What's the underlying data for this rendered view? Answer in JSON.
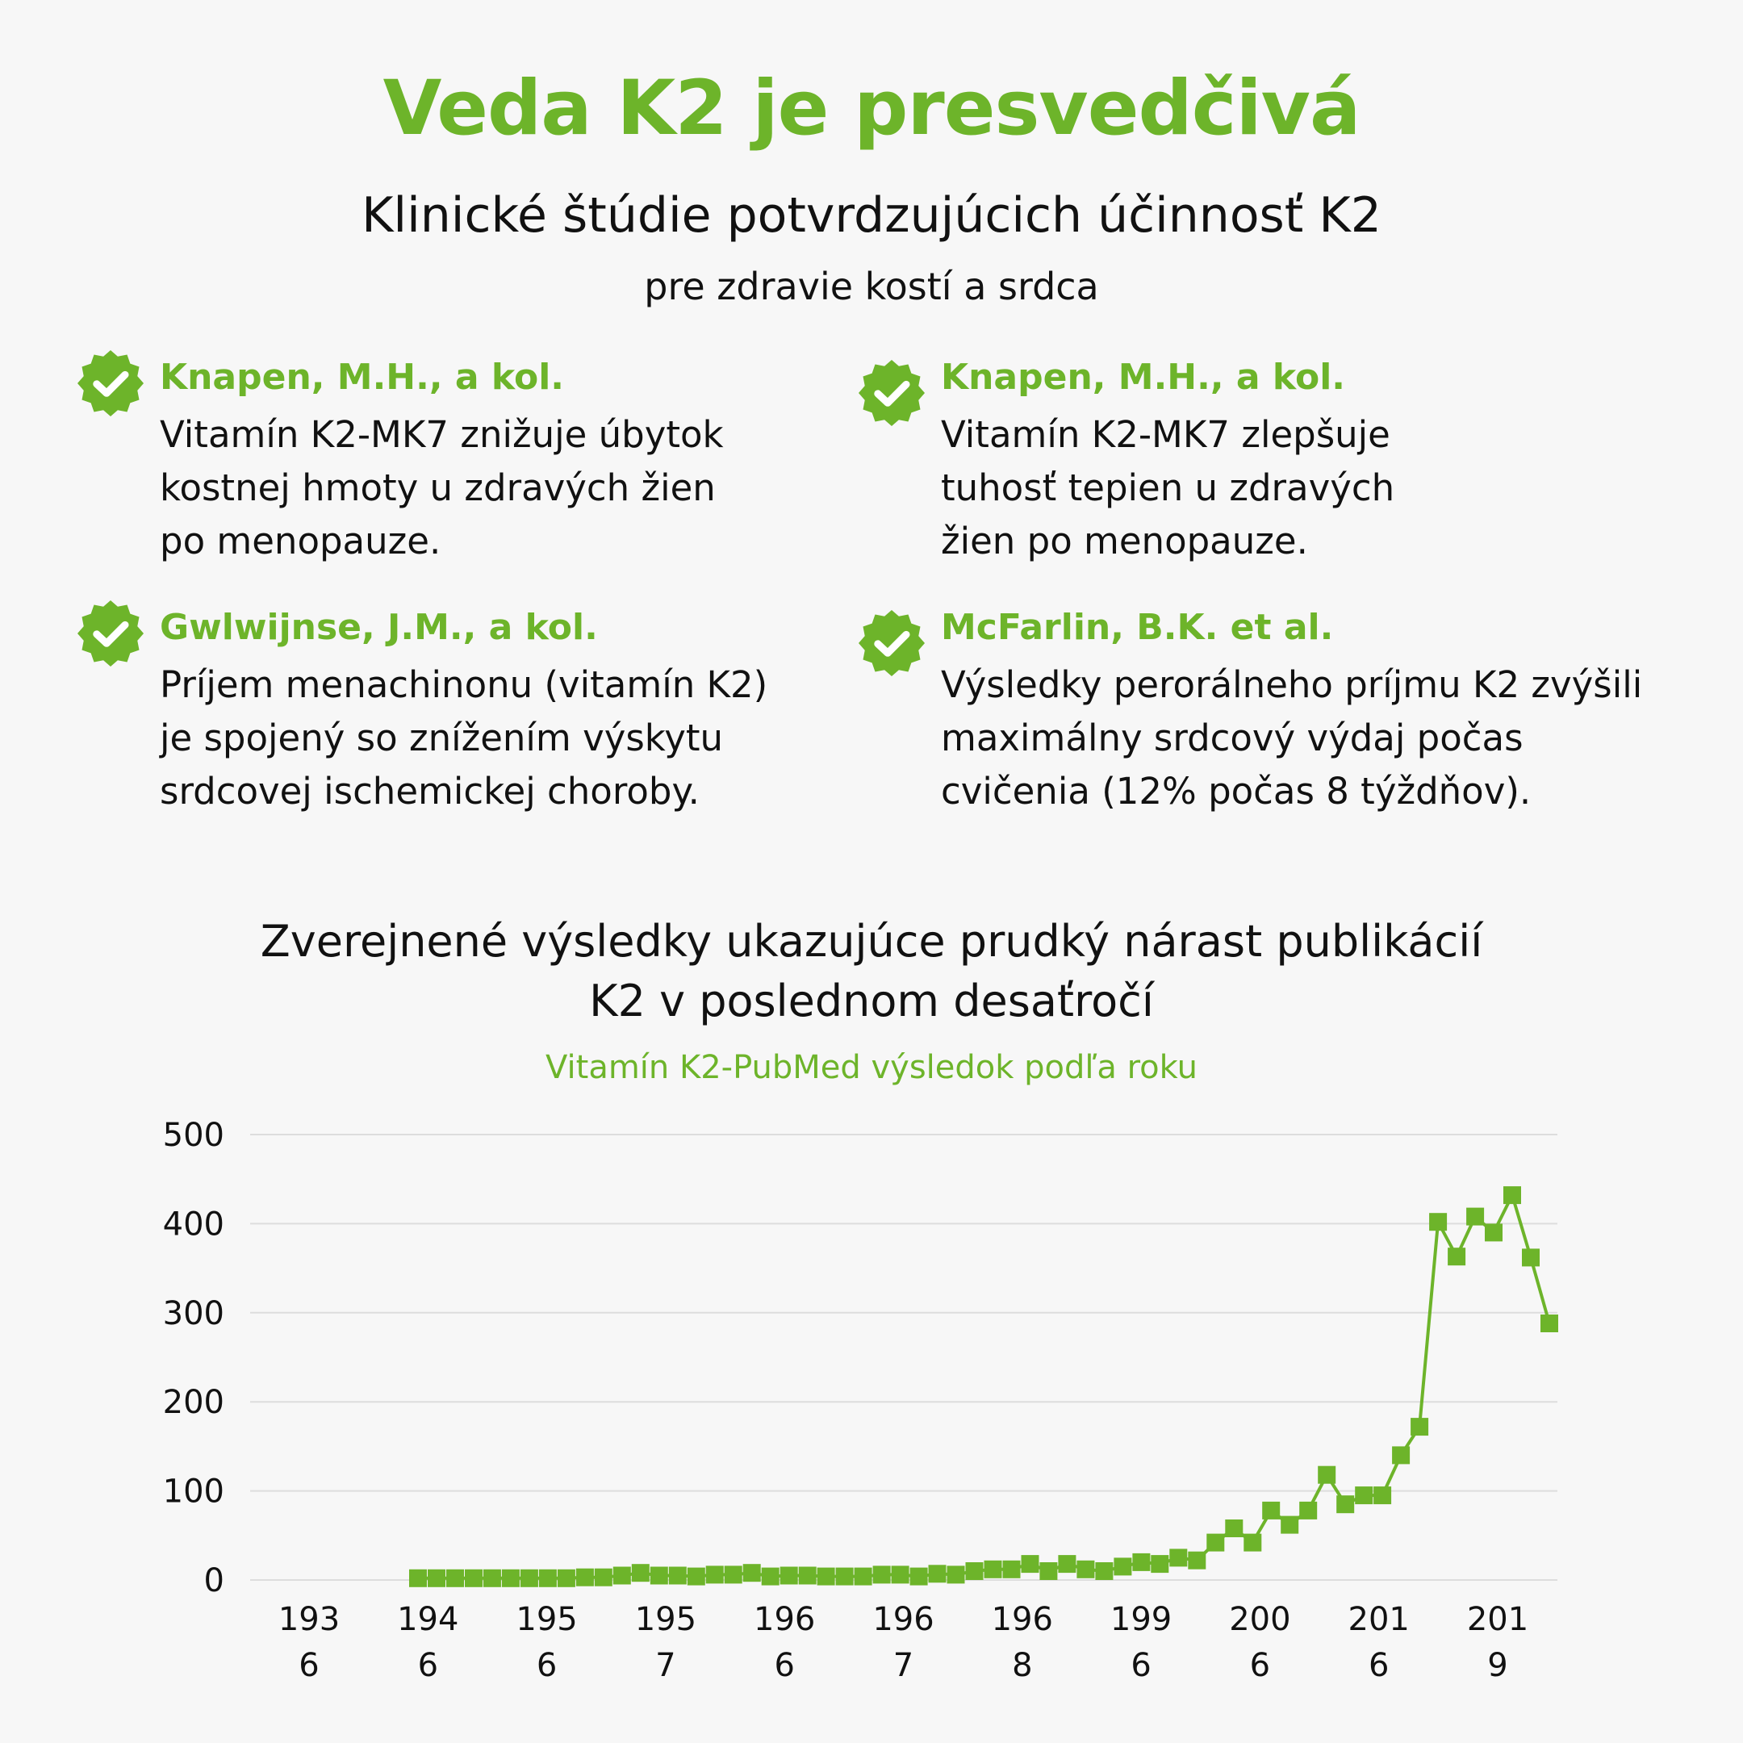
{
  "header": {
    "title": "Veda K2 je presvedčivá",
    "subtitle": "Klinické štúdie potvrdzujúcich účinnosť K2",
    "subtitle2": "pre zdravie kostí a srdca"
  },
  "studies": [
    {
      "author": "Knapen, M.H., a kol.",
      "lines": [
        "Vitamín K2-MK7 znižuje úbytok",
        "kostnej hmoty u zdravých žien",
        "po menopauze."
      ]
    },
    {
      "author": "Knapen, M.H., a kol.",
      "lines": [
        "Vitamín K2-MK7 zlepšuje",
        "tuhosť tepien u zdravých",
        "žien po menopauze."
      ]
    },
    {
      "author": "Gwlwijnse, J.M., a kol.",
      "lines": [
        "Príjem menachinonu (vitamín K2)",
        "je spojený so znížením výskytu",
        "srdcovej ischemickej choroby."
      ]
    },
    {
      "author": "McFarlin, B.K. et al.",
      "lines": [
        "Výsledky perorálneho príjmu K2 zvýšili",
        "maximálny srdcový výdaj počas",
        "cvičenia (12% počas 8 týždňov)."
      ]
    }
  ],
  "colors": {
    "accent": "#6db42a",
    "text": "#111111",
    "grid": "#dddddd",
    "background": "#f7f7f7"
  },
  "icons": {
    "check_badge": "check-badge-icon"
  },
  "chart_data": {
    "type": "line",
    "title_lines": [
      "Zverejnené výsledky ukazujúce prudký nárast publikácií",
      "K2 v poslednom desaťročí"
    ],
    "subtitle": "Vitamín K2-PubMed výsledok podľa roku",
    "ylim": [
      0,
      500
    ],
    "yticks": [
      0,
      100,
      200,
      300,
      400,
      500
    ],
    "xtick_labels": [
      [
        "193",
        "6"
      ],
      [
        "194",
        "6"
      ],
      [
        "195",
        "6"
      ],
      [
        "195",
        "7"
      ],
      [
        "196",
        "6"
      ],
      [
        "196",
        "7"
      ],
      [
        "196",
        "8"
      ],
      [
        "199",
        "6"
      ],
      [
        "200",
        "6"
      ],
      [
        "201",
        "6"
      ],
      [
        "201",
        "9"
      ]
    ],
    "grid": true,
    "marker": "square",
    "series": [
      {
        "values": [
          2,
          2,
          2,
          2,
          2,
          2,
          2,
          2,
          2,
          3,
          3,
          5,
          8,
          5,
          5,
          4,
          6,
          6,
          8,
          4,
          5,
          5,
          4,
          4,
          4,
          6,
          6,
          4,
          7,
          6,
          10,
          12,
          12,
          18,
          10,
          18,
          12,
          10,
          15,
          20,
          18,
          25,
          22,
          42,
          58,
          42,
          78,
          62,
          78,
          118,
          85,
          95,
          95,
          140,
          172,
          402,
          363,
          408,
          390,
          432,
          362,
          288
        ]
      }
    ]
  }
}
